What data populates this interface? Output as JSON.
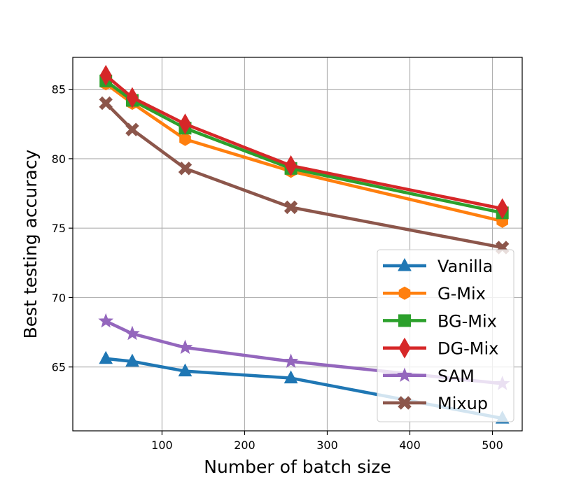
{
  "chart_data": {
    "type": "line",
    "title": "",
    "xlabel": "Number of batch size",
    "ylabel": "Best testing accuracy",
    "xlim": [
      -8,
      536
    ],
    "ylim": [
      60.4,
      87.3
    ],
    "x_ticks": [
      100,
      200,
      300,
      400,
      500
    ],
    "x_tick_labels": [
      "100",
      "200",
      "300",
      "400",
      "500"
    ],
    "y_ticks": [
      65,
      70,
      75,
      80,
      85
    ],
    "y_tick_labels": [
      "65",
      "70",
      "75",
      "80",
      "85"
    ],
    "grid": true,
    "legend_position": "lower-right",
    "x": [
      32,
      64,
      128,
      256,
      512
    ],
    "series": [
      {
        "name": "Vanilla",
        "color": "#1f77b4",
        "marker": "triangle",
        "values": [
          65.6,
          65.4,
          64.7,
          64.2,
          61.3
        ]
      },
      {
        "name": "G-Mix",
        "color": "#ff7f0e",
        "marker": "hexagon",
        "values": [
          85.4,
          84.0,
          81.4,
          79.1,
          75.5
        ]
      },
      {
        "name": "BG-Mix",
        "color": "#2ca02c",
        "marker": "square",
        "values": [
          85.6,
          84.2,
          82.2,
          79.3,
          76.1
        ]
      },
      {
        "name": "DG-Mix",
        "color": "#d62728",
        "marker": "diamond",
        "values": [
          86.0,
          84.4,
          82.5,
          79.5,
          76.4
        ]
      },
      {
        "name": "SAM",
        "color": "#9467bd",
        "marker": "star",
        "values": [
          68.3,
          67.4,
          66.4,
          65.4,
          63.8
        ]
      },
      {
        "name": "Mixup",
        "color": "#8c564b",
        "marker": "x",
        "values": [
          84.0,
          82.1,
          79.3,
          76.5,
          73.6
        ]
      }
    ]
  }
}
